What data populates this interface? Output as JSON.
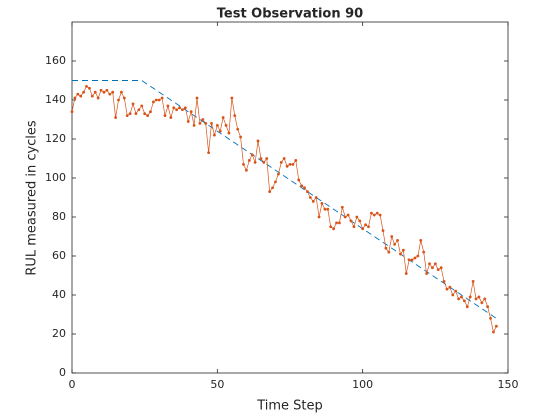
{
  "chart_data": {
    "type": "line",
    "title": "Test Observation 90",
    "xlabel": "Time Step",
    "ylabel": "RUL measured in cycles",
    "x": [
      0,
      1,
      2,
      3,
      4,
      5,
      6,
      7,
      8,
      9,
      10,
      11,
      12,
      13,
      14,
      15,
      16,
      17,
      18,
      19,
      20,
      21,
      22,
      23,
      24,
      25,
      26,
      27,
      28,
      29,
      30,
      31,
      32,
      33,
      34,
      35,
      36,
      37,
      38,
      39,
      40,
      41,
      42,
      43,
      44,
      45,
      46,
      47,
      48,
      49,
      50,
      51,
      52,
      53,
      54,
      55,
      56,
      57,
      58,
      59,
      60,
      61,
      62,
      63,
      64,
      65,
      66,
      67,
      68,
      69,
      70,
      71,
      72,
      73,
      74,
      75,
      76,
      77,
      78,
      79,
      80,
      81,
      82,
      83,
      84,
      85,
      86,
      87,
      88,
      89,
      90,
      91,
      92,
      93,
      94,
      95,
      96,
      97,
      98,
      99,
      100,
      101,
      102,
      103,
      104,
      105,
      106,
      107,
      108,
      109,
      110,
      111,
      112,
      113,
      114,
      115,
      116,
      117,
      118,
      119,
      120,
      121,
      122,
      123,
      124,
      125,
      126,
      127,
      128,
      129,
      130,
      131,
      132,
      133,
      134,
      135,
      136,
      137,
      138,
      139,
      140,
      141,
      142,
      143,
      144,
      145,
      146
    ],
    "series": [
      {
        "color": "#0072BD",
        "dashed": true,
        "markers": false,
        "values": [
          150,
          150,
          150,
          150,
          150,
          150,
          150,
          150,
          150,
          150,
          150,
          150,
          150,
          150,
          150,
          150,
          150,
          150,
          150,
          150,
          150,
          150,
          150,
          150,
          150,
          149,
          148,
          147,
          146,
          145,
          144,
          143,
          142,
          141,
          140,
          139,
          138,
          137,
          136,
          135,
          134,
          133,
          132,
          131,
          130,
          129,
          128,
          127,
          126,
          125,
          124,
          123,
          122,
          121,
          120,
          119,
          118,
          117,
          116,
          115,
          114,
          113,
          112,
          111,
          110,
          109,
          108,
          107,
          106,
          105,
          104,
          103,
          102,
          101,
          100,
          99,
          98,
          97,
          96,
          95,
          94,
          93,
          92,
          91,
          90,
          89,
          88,
          87,
          86,
          85,
          84,
          83,
          82,
          81,
          80,
          79,
          78,
          77,
          76,
          75,
          74,
          73,
          72,
          71,
          70,
          69,
          68,
          67,
          66,
          65,
          64,
          63,
          62,
          61,
          60,
          59,
          58,
          57,
          56,
          55,
          54,
          53,
          52,
          51,
          50,
          49,
          48,
          47,
          46,
          45,
          44,
          43,
          42,
          41,
          40,
          39,
          38,
          37,
          36,
          35,
          34,
          33,
          32,
          31,
          30,
          29,
          28
        ]
      },
      {
        "color": "#D95319",
        "dashed": false,
        "markers": true,
        "values": [
          134,
          141,
          143,
          142,
          144,
          147,
          146,
          142,
          144,
          141,
          145,
          144,
          145,
          143,
          144,
          131,
          140,
          144,
          141,
          132,
          133,
          138,
          133,
          135,
          137,
          133,
          132,
          134,
          139,
          140,
          140,
          141,
          132,
          137,
          131,
          136,
          135,
          136,
          135,
          136,
          129,
          134,
          127,
          141,
          128,
          130,
          128,
          113,
          128,
          122,
          127,
          124,
          131,
          127,
          123,
          141,
          132,
          125,
          121,
          107,
          104,
          109,
          112,
          108,
          119,
          110,
          108,
          110,
          93,
          95,
          98,
          102,
          108,
          110,
          106,
          107,
          107,
          109,
          99,
          96,
          95,
          93,
          90,
          88,
          90,
          80,
          87,
          84,
          84,
          75,
          74,
          77,
          77,
          85,
          80,
          81,
          78,
          75,
          80,
          78,
          74,
          76,
          75,
          82,
          81,
          82,
          81,
          73,
          64,
          62,
          70,
          66,
          68,
          61,
          63,
          51,
          58,
          58,
          59,
          60,
          68,
          62,
          51,
          56,
          54,
          56,
          53,
          54,
          47,
          43,
          44,
          40,
          42,
          38,
          39,
          37,
          34,
          39,
          47,
          38,
          39,
          36,
          38,
          34,
          28,
          21,
          24
        ]
      }
    ],
    "xlim": [
      0,
      150
    ],
    "xticks": [
      0,
      50,
      100,
      150
    ],
    "ylim": [
      0,
      180
    ],
    "yticks": [
      0,
      20,
      40,
      60,
      80,
      100,
      120,
      140,
      160
    ],
    "grid": false
  }
}
